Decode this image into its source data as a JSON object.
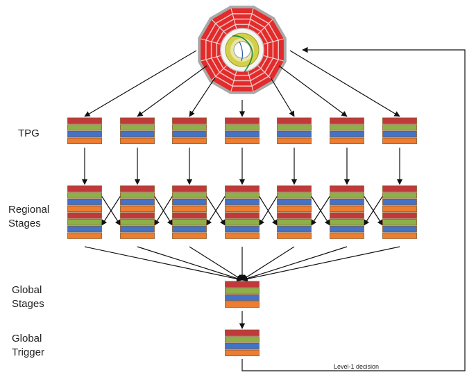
{
  "labels": {
    "tpg": "TPG",
    "regional_line1": "Regional",
    "regional_line2": "Stages",
    "global_stages_line1": "Global",
    "global_stages_line2": "Stages",
    "global_trigger_line1": "Global",
    "global_trigger_line2": "Trigger",
    "decision": "Level-1 decision"
  },
  "board_colors": [
    "#c0393b",
    "#8db04a",
    "#4472c4",
    "#ed7d31"
  ],
  "board_border": "#8a5a2a",
  "detector_colors": {
    "outer": "#e32b2b",
    "rim": "#a8a8a8",
    "tracker": "#d4cf49",
    "core": "#ffffff",
    "track": "#1a8a3a"
  },
  "tpg_columns": 7,
  "regional_columns": 7
}
